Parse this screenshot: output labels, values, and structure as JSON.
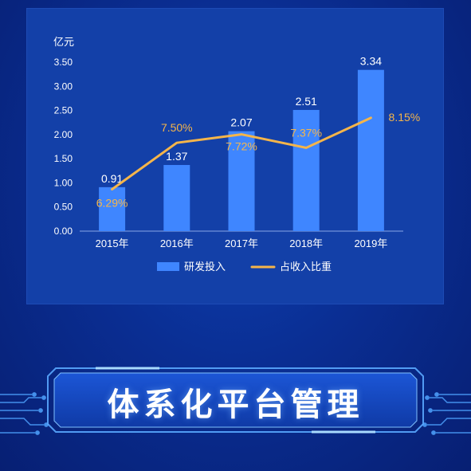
{
  "chart_data": {
    "type": "bar",
    "ylabel": "亿元",
    "ylim": [
      0,
      3.5
    ],
    "yticks": [
      "0.00",
      "0.50",
      "1.00",
      "1.50",
      "2.00",
      "2.50",
      "3.00",
      "3.50"
    ],
    "categories": [
      "2015年",
      "2016年",
      "2017年",
      "2018年",
      "2019年"
    ],
    "series": [
      {
        "name": "研发投入",
        "kind": "bar",
        "values": [
          0.91,
          1.37,
          2.07,
          2.51,
          3.34
        ],
        "labels": [
          "0.91",
          "1.37",
          "2.07",
          "2.51",
          "3.34"
        ],
        "color": "#3f86ff"
      },
      {
        "name": "占收入比重",
        "kind": "line",
        "values_percent": [
          6.29,
          7.5,
          7.72,
          7.37,
          8.15
        ],
        "labels": [
          "6.29%",
          "7.50%",
          "7.72%",
          "7.37%",
          "8.15%"
        ],
        "color": "#f5b54a"
      }
    ],
    "legend": "bottom-center",
    "grid": false
  },
  "banner": {
    "title": "体系化平台管理"
  },
  "colors": {
    "background": "#0a2e93",
    "panel": "#1340a8",
    "bar": "#3f86ff",
    "line": "#f5b54a",
    "text": "#ffffff",
    "circuit": "#4fa3ff"
  }
}
